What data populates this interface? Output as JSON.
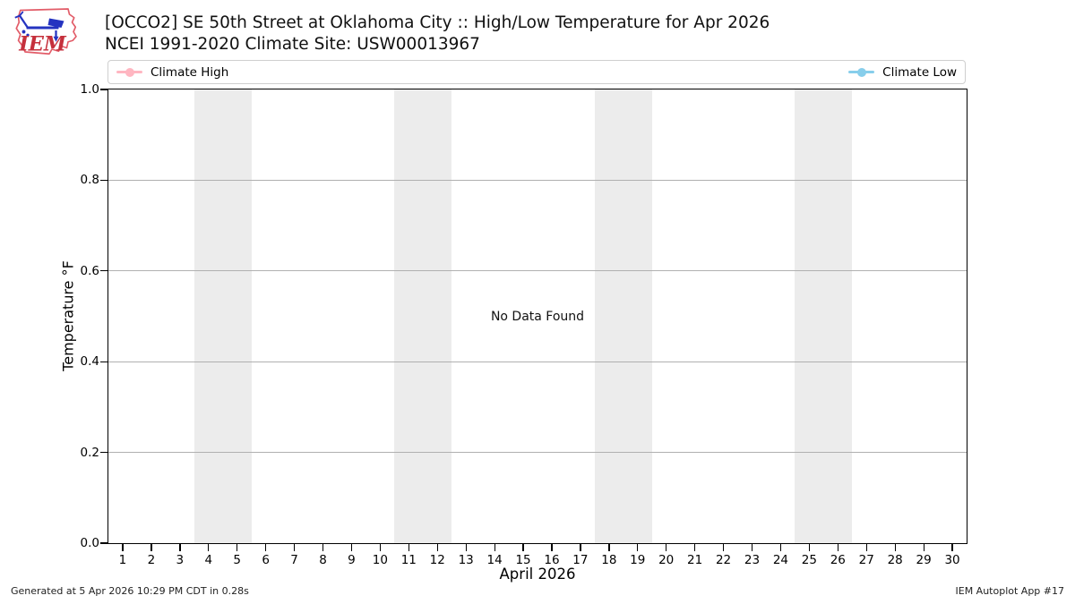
{
  "header": {
    "title": "[OCCO2] SE 50th Street at Oklahoma City :: High/Low Temperature for Apr 2026",
    "subtitle": "NCEI 1991-2020 Climate Site: USW00013967"
  },
  "logo": {
    "text": "IEM"
  },
  "legend": {
    "entries": [
      {
        "label": "Climate High",
        "color": "#ffb6c1"
      },
      {
        "label": "Climate Low",
        "color": "#87ceeb"
      }
    ]
  },
  "chart_data": {
    "type": "line",
    "title": "[OCCO2] SE 50th Street at Oklahoma City :: High/Low Temperature for Apr 2026",
    "subtitle": "NCEI 1991-2020 Climate Site: USW00013967",
    "xlabel": "April 2026",
    "ylabel": "Temperature °F",
    "xlim": [
      0.5,
      30.5
    ],
    "ylim": [
      0.0,
      1.0
    ],
    "x_ticks": [
      1,
      2,
      3,
      4,
      5,
      6,
      7,
      8,
      9,
      10,
      11,
      12,
      13,
      14,
      15,
      16,
      17,
      18,
      19,
      20,
      21,
      22,
      23,
      24,
      25,
      26,
      27,
      28,
      29,
      30
    ],
    "y_ticks": [
      {
        "value": 0.0,
        "label": "0.0"
      },
      {
        "value": 0.2,
        "label": "0.2"
      },
      {
        "value": 0.4,
        "label": "0.4"
      },
      {
        "value": 0.6,
        "label": "0.6"
      },
      {
        "value": 0.8,
        "label": "0.8"
      },
      {
        "value": 1.0,
        "label": "1.0"
      }
    ],
    "grid": "horizontal gridlines at y ticks",
    "gridline_color": "#b0b0b0",
    "weekend_band_color": "#ececec",
    "weekend_bands": [
      [
        3.5,
        5.5
      ],
      [
        10.5,
        12.5
      ],
      [
        17.5,
        19.5
      ],
      [
        24.5,
        26.5
      ]
    ],
    "series": [
      {
        "name": "Climate High",
        "color": "#ffb6c1",
        "x": [],
        "y": []
      },
      {
        "name": "Climate Low",
        "color": "#87ceeb",
        "x": [],
        "y": []
      }
    ],
    "annotation": "No Data Found",
    "legend_position": "top full-width box, entries at left and right ends"
  },
  "footer": {
    "generated": "Generated at 5 Apr 2026 10:29 PM CDT in 0.28s",
    "app": "IEM Autoplot App #17"
  }
}
